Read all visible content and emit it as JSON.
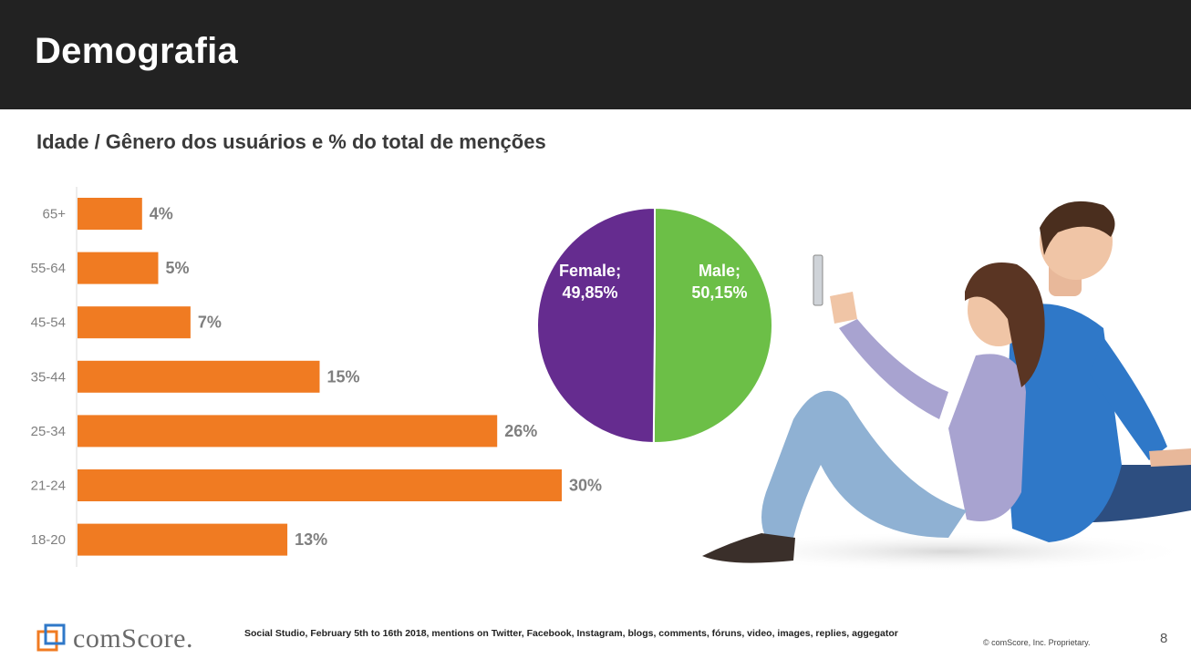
{
  "header": {
    "title": "Demografia"
  },
  "subtitle": "Idade / Gênero dos usuários e % do total de menções",
  "colors": {
    "bar": "#F07B22",
    "male": "#6CBF47",
    "female": "#652C8F",
    "header_bg": "#222222"
  },
  "chart_data": [
    {
      "type": "bar",
      "orientation": "horizontal",
      "categories": [
        "65+",
        "55-64",
        "45-54",
        "35-44",
        "25-34",
        "21-24",
        "18-20"
      ],
      "values": [
        4,
        5,
        7,
        15,
        26,
        30,
        13
      ],
      "value_labels": [
        "4%",
        "5%",
        "7%",
        "15%",
        "26%",
        "30%",
        "13%"
      ],
      "unit": "%",
      "xlim": [
        0,
        30
      ],
      "grid": false
    },
    {
      "type": "pie",
      "slices": [
        {
          "name": "Male",
          "value": 50.15,
          "label_line1": "Male;",
          "label_line2": "50,15%"
        },
        {
          "name": "Female",
          "value": 49.85,
          "label_line1": "Female;",
          "label_line2": "49,85%"
        }
      ]
    }
  ],
  "footer": {
    "logo_text": "comScore.",
    "source": "Social Studio, February 5th to 16th 2018,  mentions on Twitter, Facebook, Instagram, blogs, comments, fóruns, video, images, replies, aggegator",
    "copyright": "© comScore, Inc. Proprietary.",
    "page_number": "8"
  }
}
